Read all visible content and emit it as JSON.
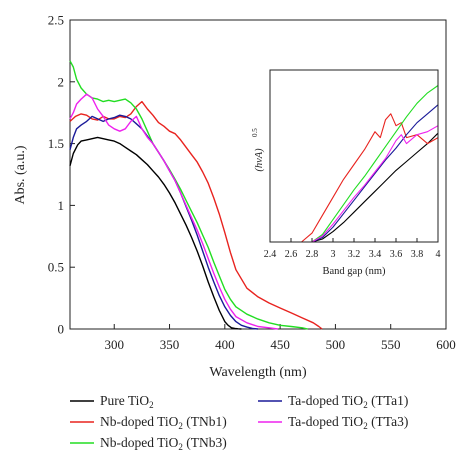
{
  "chart_data": [
    {
      "type": "line",
      "xlabel": "Wavelength (nm)",
      "ylabel": "Abs. (a.u.)",
      "xlim": [
        260,
        600
      ],
      "ylim": [
        0,
        2.5
      ],
      "xticks": [
        "300",
        "350",
        "400",
        "450",
        "500",
        "550",
        "600"
      ],
      "yticks": [
        "0",
        "0.5",
        "1",
        "1.5",
        "2",
        "2.5"
      ],
      "legend_position": "bottom",
      "series": [
        {
          "name": "Pure TiO2",
          "color": "#000000",
          "x": [
            260,
            263,
            267,
            270,
            275,
            280,
            285,
            290,
            295,
            300,
            305,
            310,
            315,
            320,
            325,
            330,
            335,
            340,
            345,
            350,
            355,
            360,
            365,
            370,
            375,
            380,
            385,
            390,
            395,
            400,
            403,
            406,
            409,
            412,
            415
          ],
          "y": [
            1.32,
            1.42,
            1.49,
            1.52,
            1.53,
            1.54,
            1.55,
            1.54,
            1.53,
            1.52,
            1.5,
            1.47,
            1.44,
            1.41,
            1.37,
            1.33,
            1.28,
            1.23,
            1.17,
            1.1,
            1.02,
            0.93,
            0.84,
            0.74,
            0.63,
            0.51,
            0.38,
            0.26,
            0.15,
            0.06,
            0.03,
            0.01,
            0.005,
            0.002,
            0.0
          ]
        },
        {
          "name": "Nb-doped TiO2 (TNb1)",
          "color": "#e8231f",
          "x": [
            260,
            265,
            270,
            275,
            280,
            285,
            290,
            295,
            300,
            305,
            310,
            315,
            320,
            325,
            330,
            335,
            340,
            345,
            350,
            355,
            360,
            365,
            370,
            375,
            380,
            385,
            390,
            395,
            400,
            405,
            410,
            420,
            430,
            440,
            450,
            460,
            470,
            480,
            485,
            488
          ],
          "y": [
            1.68,
            1.72,
            1.74,
            1.73,
            1.7,
            1.69,
            1.72,
            1.7,
            1.7,
            1.72,
            1.71,
            1.74,
            1.8,
            1.84,
            1.78,
            1.73,
            1.67,
            1.64,
            1.6,
            1.58,
            1.53,
            1.47,
            1.41,
            1.35,
            1.27,
            1.18,
            1.06,
            0.93,
            0.78,
            0.62,
            0.48,
            0.33,
            0.26,
            0.21,
            0.17,
            0.13,
            0.09,
            0.05,
            0.02,
            0.0
          ]
        },
        {
          "name": "Nb-doped TiO2 (TNb3)",
          "color": "#22dd22",
          "x": [
            260,
            263,
            266,
            270,
            275,
            280,
            285,
            290,
            295,
            300,
            305,
            310,
            315,
            320,
            325,
            330,
            335,
            340,
            345,
            350,
            355,
            360,
            365,
            370,
            375,
            380,
            385,
            390,
            395,
            400,
            405,
            410,
            420,
            430,
            440,
            450,
            460,
            470,
            475
          ],
          "y": [
            2.17,
            2.12,
            2.02,
            1.95,
            1.9,
            1.87,
            1.86,
            1.84,
            1.85,
            1.84,
            1.85,
            1.86,
            1.83,
            1.78,
            1.7,
            1.6,
            1.5,
            1.43,
            1.36,
            1.29,
            1.21,
            1.13,
            1.04,
            0.95,
            0.86,
            0.76,
            0.66,
            0.54,
            0.43,
            0.32,
            0.24,
            0.18,
            0.12,
            0.08,
            0.05,
            0.03,
            0.02,
            0.01,
            0.0
          ]
        },
        {
          "name": "Ta-doped TiO2 (TTa1)",
          "color": "#1a1a99",
          "x": [
            260,
            263,
            266,
            270,
            275,
            280,
            285,
            290,
            295,
            300,
            305,
            310,
            315,
            320,
            325,
            330,
            335,
            340,
            345,
            350,
            355,
            360,
            365,
            370,
            375,
            380,
            385,
            390,
            395,
            400,
            405,
            410,
            415,
            420,
            425,
            430
          ],
          "y": [
            1.45,
            1.55,
            1.62,
            1.65,
            1.68,
            1.72,
            1.7,
            1.68,
            1.7,
            1.71,
            1.73,
            1.72,
            1.7,
            1.66,
            1.62,
            1.56,
            1.5,
            1.43,
            1.36,
            1.28,
            1.2,
            1.1,
            0.99,
            0.88,
            0.76,
            0.63,
            0.5,
            0.38,
            0.27,
            0.18,
            0.11,
            0.06,
            0.03,
            0.015,
            0.005,
            0.0
          ]
        },
        {
          "name": "Ta-doped TiO2 (TTa3)",
          "color": "#ee22ee",
          "x": [
            260,
            263,
            266,
            270,
            275,
            280,
            285,
            290,
            295,
            300,
            305,
            310,
            315,
            320,
            325,
            330,
            335,
            340,
            345,
            350,
            355,
            360,
            365,
            370,
            375,
            380,
            385,
            390,
            395,
            400,
            405,
            410,
            420,
            430,
            440,
            448
          ],
          "y": [
            1.7,
            1.75,
            1.82,
            1.86,
            1.9,
            1.87,
            1.78,
            1.72,
            1.65,
            1.62,
            1.6,
            1.62,
            1.68,
            1.72,
            1.62,
            1.55,
            1.5,
            1.43,
            1.36,
            1.28,
            1.2,
            1.1,
            1.0,
            0.9,
            0.8,
            0.69,
            0.57,
            0.45,
            0.34,
            0.24,
            0.16,
            0.1,
            0.05,
            0.02,
            0.01,
            0.0
          ]
        }
      ]
    },
    {
      "type": "line",
      "role": "inset",
      "xlabel": "Band gap (nm)",
      "ylabel": "(hνA)",
      "ylabel_superscript": "0.5",
      "xlim": [
        2.4,
        4.0
      ],
      "xticks": [
        "2.4",
        "2.6",
        "2.8",
        "3",
        "3.2",
        "3.4",
        "3.6",
        "3.8",
        "4"
      ],
      "yticks_shown": false,
      "series": [
        {
          "name": "Pure TiO2",
          "color": "#000000",
          "x": [
            2.4,
            2.8,
            2.9,
            3.0,
            3.1,
            3.2,
            3.3,
            3.4,
            3.5,
            3.6,
            3.7,
            3.8,
            3.9,
            4.0
          ],
          "y": [
            0.0,
            0.0,
            0.02,
            0.07,
            0.13,
            0.2,
            0.27,
            0.34,
            0.41,
            0.48,
            0.54,
            0.6,
            0.66,
            0.73
          ]
        },
        {
          "name": "Nb-doped TiO2 (TNb1)",
          "color": "#e8231f",
          "x": [
            2.4,
            2.7,
            2.8,
            2.9,
            3.0,
            3.1,
            3.2,
            3.3,
            3.4,
            3.45,
            3.5,
            3.55,
            3.6,
            3.65,
            3.7,
            3.8,
            3.9,
            4.0
          ],
          "y": [
            0.0,
            0.0,
            0.06,
            0.18,
            0.3,
            0.42,
            0.52,
            0.62,
            0.74,
            0.7,
            0.82,
            0.86,
            0.78,
            0.8,
            0.7,
            0.72,
            0.66,
            0.7
          ]
        },
        {
          "name": "Nb-doped TiO2 (TNb3)",
          "color": "#22dd22",
          "x": [
            2.4,
            2.8,
            2.9,
            3.0,
            3.1,
            3.2,
            3.3,
            3.4,
            3.5,
            3.6,
            3.7,
            3.8,
            3.9,
            4.0
          ],
          "y": [
            0.0,
            0.0,
            0.05,
            0.15,
            0.25,
            0.35,
            0.44,
            0.54,
            0.64,
            0.74,
            0.84,
            0.93,
            1.0,
            1.05
          ]
        },
        {
          "name": "Ta-doped TiO2 (TTa1)",
          "color": "#1a1a99",
          "x": [
            2.4,
            2.8,
            2.9,
            3.0,
            3.1,
            3.2,
            3.3,
            3.4,
            3.5,
            3.6,
            3.7,
            3.8,
            3.9,
            4.0
          ],
          "y": [
            0.0,
            0.0,
            0.03,
            0.1,
            0.19,
            0.28,
            0.37,
            0.46,
            0.55,
            0.63,
            0.72,
            0.8,
            0.86,
            0.92
          ]
        },
        {
          "name": "Ta-doped TiO2 (TTa3)",
          "color": "#ee22ee",
          "x": [
            2.4,
            2.8,
            2.9,
            3.0,
            3.1,
            3.2,
            3.3,
            3.4,
            3.5,
            3.6,
            3.65,
            3.7,
            3.8,
            3.9,
            4.0
          ],
          "y": [
            0.0,
            0.0,
            0.04,
            0.12,
            0.21,
            0.3,
            0.38,
            0.47,
            0.56,
            0.68,
            0.72,
            0.66,
            0.72,
            0.74,
            0.78
          ]
        }
      ]
    }
  ],
  "legend": {
    "entries": [
      {
        "label": "Pure TiO",
        "sub": "2",
        "suffix": "",
        "color": "#000000"
      },
      {
        "label": "Ta-doped TiO",
        "sub": "2",
        "suffix": " (TTa1)",
        "color": "#1a1a99"
      },
      {
        "label": "Nb-doped TiO",
        "sub": "2",
        "suffix": " (TNb1)",
        "color": "#e8231f"
      },
      {
        "label": "Ta-doped TiO",
        "sub": "2",
        "suffix": " (TTa3)",
        "color": "#ee22ee"
      },
      {
        "label": "Nb-doped TiO",
        "sub": "2",
        "suffix": " (TNb3)",
        "color": "#22dd22"
      }
    ]
  }
}
